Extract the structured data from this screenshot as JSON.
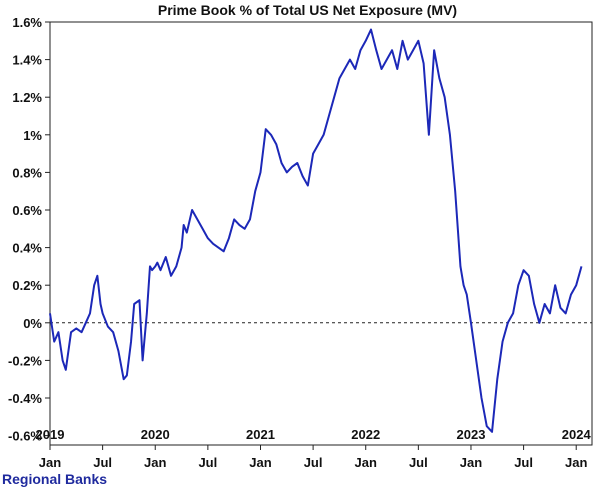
{
  "chart_data": {
    "type": "line",
    "title": "Prime Book % of Total US Net Exposure (MV)",
    "subtitle": "Regional Banks",
    "xlabel": "",
    "ylabel": "",
    "ylim": [
      -0.65,
      1.6
    ],
    "y_ticks": [
      -0.6,
      -0.4,
      -0.2,
      0,
      0.2,
      0.4,
      0.6,
      0.8,
      1.0,
      1.2,
      1.4,
      1.6
    ],
    "y_tick_labels": [
      "-0.6%",
      "-0.4%",
      "-0.2%",
      "0%",
      "0.2%",
      "0.4%",
      "0.6%",
      "0.8%",
      "1%",
      "1.2%",
      "1.4%",
      "1.6%"
    ],
    "xlim": [
      2019.0,
      2024.15
    ],
    "x_month_ticks": [
      {
        "x": 2019.0,
        "label": "Jan"
      },
      {
        "x": 2019.5,
        "label": "Jul"
      },
      {
        "x": 2020.0,
        "label": "Jan"
      },
      {
        "x": 2020.5,
        "label": "Jul"
      },
      {
        "x": 2021.0,
        "label": "Jan"
      },
      {
        "x": 2021.5,
        "label": "Jul"
      },
      {
        "x": 2022.0,
        "label": "Jan"
      },
      {
        "x": 2022.5,
        "label": "Jul"
      },
      {
        "x": 2023.0,
        "label": "Jan"
      },
      {
        "x": 2023.5,
        "label": "Jul"
      },
      {
        "x": 2024.0,
        "label": "Jan"
      }
    ],
    "x_year_labels": [
      {
        "x": 2019.0,
        "label": "2019"
      },
      {
        "x": 2020.0,
        "label": "2020"
      },
      {
        "x": 2021.0,
        "label": "2021"
      },
      {
        "x": 2022.0,
        "label": "2022"
      },
      {
        "x": 2023.0,
        "label": "2023"
      },
      {
        "x": 2024.0,
        "label": "2024"
      }
    ],
    "reference_line": {
      "y": 0,
      "style": "dashed"
    },
    "grid": false,
    "line_color": "#1c28b8",
    "series": [
      {
        "x": [
          2019.0,
          2019.04,
          2019.08,
          2019.12,
          2019.15,
          2019.2,
          2019.25,
          2019.3,
          2019.34,
          2019.38,
          2019.42,
          2019.45,
          2019.48,
          2019.5,
          2019.55,
          2019.6,
          2019.65,
          2019.7,
          2019.73,
          2019.77,
          2019.8,
          2019.85,
          2019.88,
          2019.92,
          2019.95,
          2019.97,
          2020.0,
          2020.02,
          2020.05,
          2020.1,
          2020.15,
          2020.2,
          2020.25,
          2020.27,
          2020.3,
          2020.35,
          2020.4,
          2020.45,
          2020.5,
          2020.55,
          2020.6,
          2020.65,
          2020.7,
          2020.75,
          2020.8,
          2020.85,
          2020.9,
          2020.95,
          2021.0,
          2021.05,
          2021.1,
          2021.15,
          2021.2,
          2021.25,
          2021.3,
          2021.35,
          2021.4,
          2021.45,
          2021.5,
          2021.55,
          2021.6,
          2021.65,
          2021.7,
          2021.75,
          2021.8,
          2021.85,
          2021.9,
          2021.95,
          2022.0,
          2022.05,
          2022.1,
          2022.15,
          2022.2,
          2022.25,
          2022.3,
          2022.35,
          2022.4,
          2022.45,
          2022.5,
          2022.55,
          2022.6,
          2022.65,
          2022.7,
          2022.75,
          2022.8,
          2022.85,
          2022.9,
          2022.93,
          2022.96,
          2023.0,
          2023.05,
          2023.1,
          2023.15,
          2023.2,
          2023.25,
          2023.3,
          2023.35,
          2023.4,
          2023.45,
          2023.5,
          2023.55,
          2023.6,
          2023.65,
          2023.7,
          2023.75,
          2023.8,
          2023.85,
          2023.9,
          2023.95,
          2024.0,
          2024.05
        ],
        "values": [
          0.05,
          -0.1,
          -0.05,
          -0.2,
          -0.25,
          -0.05,
          -0.03,
          -0.05,
          0.0,
          0.05,
          0.2,
          0.25,
          0.1,
          0.05,
          -0.02,
          -0.05,
          -0.15,
          -0.3,
          -0.28,
          -0.1,
          0.1,
          0.12,
          -0.2,
          0.05,
          0.3,
          0.28,
          0.3,
          0.32,
          0.28,
          0.35,
          0.25,
          0.3,
          0.4,
          0.52,
          0.48,
          0.6,
          0.55,
          0.5,
          0.45,
          0.42,
          0.4,
          0.38,
          0.45,
          0.55,
          0.52,
          0.5,
          0.55,
          0.7,
          0.8,
          1.03,
          1.0,
          0.95,
          0.85,
          0.8,
          0.83,
          0.85,
          0.78,
          0.73,
          0.9,
          0.95,
          1.0,
          1.1,
          1.2,
          1.3,
          1.35,
          1.4,
          1.35,
          1.45,
          1.5,
          1.56,
          1.45,
          1.35,
          1.4,
          1.45,
          1.35,
          1.5,
          1.4,
          1.45,
          1.5,
          1.38,
          1.0,
          1.45,
          1.3,
          1.2,
          1.0,
          0.7,
          0.3,
          0.2,
          0.15,
          0.0,
          -0.2,
          -0.4,
          -0.55,
          -0.58,
          -0.3,
          -0.1,
          0.0,
          0.05,
          0.2,
          0.28,
          0.25,
          0.1,
          0.0,
          0.1,
          0.05,
          0.2,
          0.08,
          0.05,
          0.15,
          0.2,
          0.3
        ]
      }
    ]
  }
}
